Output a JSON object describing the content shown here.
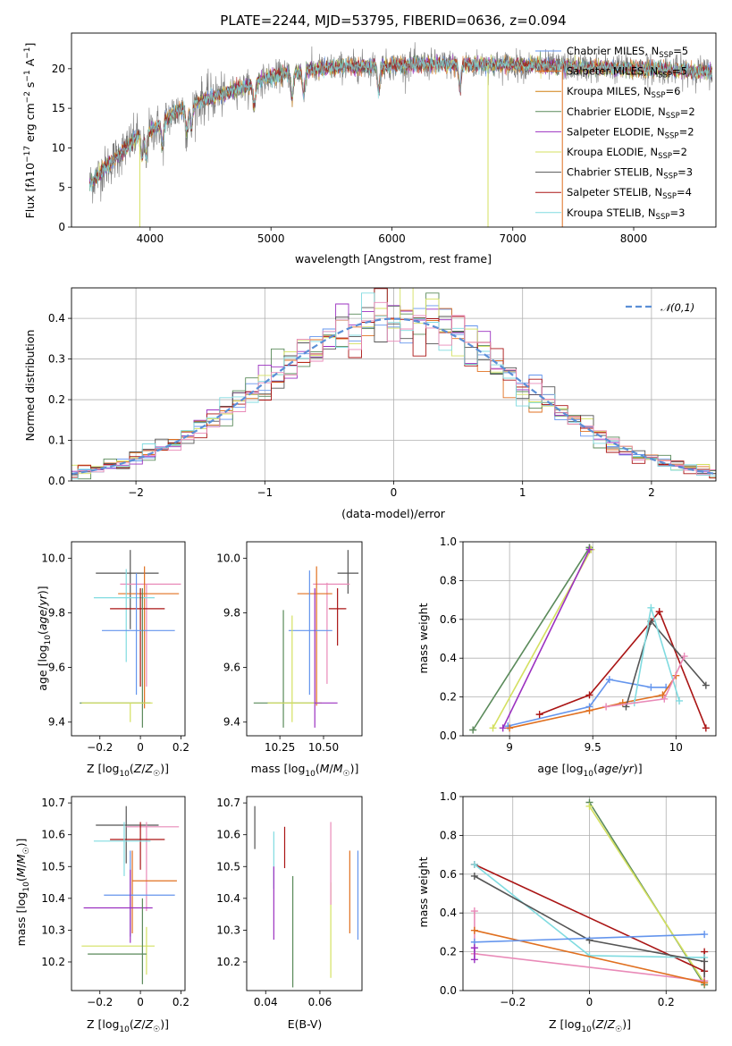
{
  "chart_data": [
    {
      "id": "spectrum",
      "type": "line",
      "title": "PLATE=2244, MJD=53795, FIBERID=0636, z=0.094",
      "xlabel": "wavelength [Angstrom, rest frame]",
      "ylabel": "Flux [f_λ10^-17 erg cm^-2 s^-1 A^-1]",
      "xlim": [
        3350,
        8680
      ],
      "ylim": [
        0,
        24.5
      ],
      "xticks": [
        4000,
        5000,
        6000,
        7000,
        8000
      ],
      "yticks": [
        0,
        5,
        10,
        15,
        20
      ],
      "continuum": {
        "x": [
          3500,
          3700,
          3900,
          4050,
          4200,
          4400,
          4600,
          4800,
          5000,
          5300,
          5600,
          6000,
          6400,
          6800,
          7200,
          7600,
          8000,
          8400,
          8650
        ],
        "y": [
          5.5,
          8.5,
          11.5,
          12.5,
          14.5,
          15.8,
          16.8,
          17.8,
          19.0,
          19.8,
          20.3,
          20.4,
          20.6,
          20.5,
          20.4,
          20.2,
          20.0,
          19.8,
          19.6
        ]
      },
      "data_range": [
        3500,
        8650
      ],
      "legend": [
        {
          "name": "Chabrier MILES, N_SSP=5",
          "color": "#6495ed"
        },
        {
          "name": "Salpeter MILES, N_SSP=5",
          "color": "#e07020"
        },
        {
          "name": "Kroupa MILES, N_SSP=6",
          "color": "#d08010"
        },
        {
          "name": "Chabrier ELODIE, N_SSP=2",
          "color": "#5a8a5a"
        },
        {
          "name": "Salpeter ELODIE, N_SSP=2",
          "color": "#9b30c0"
        },
        {
          "name": "Kroupa ELODIE, N_SSP=2",
          "color": "#d4e060"
        },
        {
          "name": "Chabrier STELIB, N_SSP=3",
          "color": "#555555"
        },
        {
          "name": "Salpeter STELIB, N_SSP=4",
          "color": "#aa1515"
        },
        {
          "name": "Kroupa STELIB, N_SSP=3",
          "color": "#80dbe0"
        }
      ],
      "legend_placement": "right"
    },
    {
      "id": "residuals",
      "type": "histogram",
      "xlabel": "(data-model)/error",
      "ylabel": "Normed distribution",
      "xlim": [
        -2.5,
        2.5
      ],
      "ylim": [
        0,
        0.475
      ],
      "xticks": [
        -2,
        -1,
        0,
        1,
        2
      ],
      "yticks": [
        0.0,
        0.1,
        0.2,
        0.3,
        0.4
      ],
      "bin_width": 0.1,
      "series_colors": [
        "#6495ed",
        "#e07020",
        "#5a8a5a",
        "#9b30c0",
        "#d4e060",
        "#555555",
        "#aa1515",
        "#80dbe0",
        "#e98ab8"
      ],
      "reference": {
        "name": "𝒩(0,1)",
        "color": "#5b8fd6",
        "style": "dashed"
      },
      "legend_placement": "upper right",
      "grid": true
    },
    {
      "id": "age-vs-Z",
      "type": "errorbar",
      "xlabel": "Z [log10(Z/Z☉)]",
      "ylabel": "age [log10(age/yr)]",
      "xlim": [
        -0.34,
        0.22
      ],
      "ylim": [
        9.35,
        10.06
      ],
      "xticks": [
        -0.2,
        0.0,
        0.2
      ],
      "yticks": [
        9.4,
        9.6,
        9.8,
        10.0
      ],
      "points": [
        {
          "x": -0.05,
          "xlo": -0.22,
          "xhi": 0.09,
          "y": 9.945,
          "ylo": 9.74,
          "yhi": 10.03,
          "color": "#555555"
        },
        {
          "x": 0.03,
          "xlo": -0.1,
          "xhi": 0.2,
          "y": 9.905,
          "ylo": 9.53,
          "yhi": 9.905,
          "color": "#e98ab8"
        },
        {
          "x": 0.02,
          "xlo": -0.11,
          "xhi": 0.19,
          "y": 9.87,
          "ylo": 9.45,
          "yhi": 9.97,
          "color": "#e07020"
        },
        {
          "x": -0.07,
          "xlo": -0.23,
          "xhi": 0.07,
          "y": 9.855,
          "ylo": 9.62,
          "yhi": 9.96,
          "color": "#80dbe0"
        },
        {
          "x": 0.0,
          "xlo": -0.15,
          "xhi": 0.12,
          "y": 9.815,
          "ylo": 9.53,
          "yhi": 9.89,
          "color": "#aa1515"
        },
        {
          "x": -0.02,
          "xlo": -0.19,
          "xhi": 0.17,
          "y": 9.735,
          "ylo": 9.5,
          "yhi": 9.945,
          "color": "#6495ed"
        },
        {
          "x": 0.01,
          "xlo": -0.3,
          "xhi": 0.05,
          "y": 9.47,
          "ylo": 9.38,
          "yhi": 9.89,
          "color": "#5a8a5a"
        },
        {
          "x": -0.05,
          "xlo": -0.29,
          "xhi": 0.06,
          "y": 9.47,
          "ylo": 9.4,
          "yhi": 9.47,
          "color": "#d4e060"
        }
      ]
    },
    {
      "id": "age-vs-mass",
      "type": "errorbar",
      "xlabel": "mass [log10(M/M☉)]",
      "ylabel": "",
      "xlim": [
        10.06,
        10.72
      ],
      "ylim": [
        9.35,
        10.06
      ],
      "xticks": [
        10.25,
        10.5
      ],
      "xtick_labels": [
        "10.25",
        "10.50"
      ],
      "yticks": [
        9.4,
        9.6,
        9.8,
        10.0
      ],
      "points": [
        {
          "x": 10.64,
          "xlo": 10.58,
          "xhi": 10.7,
          "y": 9.945,
          "ylo": 9.87,
          "yhi": 10.03,
          "color": "#555555"
        },
        {
          "x": 10.52,
          "xlo": 10.44,
          "xhi": 10.65,
          "y": 9.905,
          "ylo": 9.54,
          "yhi": 9.91,
          "color": "#e98ab8"
        },
        {
          "x": 10.46,
          "xlo": 10.35,
          "xhi": 10.55,
          "y": 9.87,
          "ylo": 9.46,
          "yhi": 9.97,
          "color": "#e07020"
        },
        {
          "x": 10.58,
          "xlo": 10.53,
          "xhi": 10.63,
          "y": 9.815,
          "ylo": 9.68,
          "yhi": 9.89,
          "color": "#aa1515"
        },
        {
          "x": 10.42,
          "xlo": 10.3,
          "xhi": 10.55,
          "y": 9.735,
          "ylo": 9.5,
          "yhi": 9.955,
          "color": "#6495ed"
        },
        {
          "x": 10.27,
          "xlo": 10.1,
          "xhi": 10.45,
          "y": 9.47,
          "ylo": 9.38,
          "yhi": 9.81,
          "color": "#5a8a5a"
        },
        {
          "x": 10.32,
          "xlo": 10.18,
          "xhi": 10.49,
          "y": 9.47,
          "ylo": 9.4,
          "yhi": 9.79,
          "color": "#d4e060"
        },
        {
          "x": 10.45,
          "xlo": 10.45,
          "xhi": 10.58,
          "y": 9.47,
          "ylo": 9.38,
          "yhi": 9.89,
          "color": "#9b30c0"
        }
      ]
    },
    {
      "id": "weight-vs-age",
      "type": "line",
      "xlabel": "age [log10(age/yr)]",
      "ylabel": "mass weight",
      "xlim": [
        8.72,
        10.24
      ],
      "ylim": [
        0,
        1
      ],
      "xticks": [
        9.0,
        9.5,
        10.0
      ],
      "yticks": [
        0.0,
        0.2,
        0.4,
        0.6,
        0.8,
        1.0
      ],
      "grid": true,
      "series": [
        {
          "color": "#5a8a5a",
          "x": [
            8.78,
            9.48,
            9.48
          ],
          "y": [
            0.03,
            0.97,
            0.97
          ]
        },
        {
          "color": "#d4e060",
          "x": [
            8.9,
            9.49,
            9.49
          ],
          "y": [
            0.04,
            0.96,
            0.96
          ]
        },
        {
          "color": "#9b30c0",
          "x": [
            8.96,
            9.48
          ],
          "y": [
            0.04,
            0.96
          ]
        },
        {
          "color": "#6495ed",
          "x": [
            8.99,
            9.48,
            9.6,
            9.85,
            9.94
          ],
          "y": [
            0.05,
            0.15,
            0.29,
            0.25,
            0.25
          ]
        },
        {
          "color": "#e07020",
          "x": [
            9.0,
            9.48,
            9.68,
            9.92,
            10.0
          ],
          "y": [
            0.04,
            0.13,
            0.17,
            0.21,
            0.31
          ]
        },
        {
          "color": "#aa1515",
          "x": [
            9.18,
            9.48,
            9.9,
            10.18
          ],
          "y": [
            0.11,
            0.21,
            0.64,
            0.04
          ]
        },
        {
          "color": "#555555",
          "x": [
            9.7,
            9.85,
            10.18
          ],
          "y": [
            0.15,
            0.59,
            0.26
          ]
        },
        {
          "color": "#80dbe0",
          "x": [
            9.75,
            9.85,
            10.02
          ],
          "y": [
            0.17,
            0.66,
            0.18
          ]
        },
        {
          "color": "#e98ab8",
          "x": [
            9.58,
            9.93,
            10.05
          ],
          "y": [
            0.15,
            0.19,
            0.41
          ]
        }
      ]
    },
    {
      "id": "mass-vs-Z",
      "type": "errorbar",
      "xlabel": "Z [log10(Z/Z☉)]",
      "ylabel": "mass [log10(M/M☉)]",
      "xlim": [
        -0.34,
        0.22
      ],
      "ylim": [
        10.11,
        10.72
      ],
      "xticks": [
        -0.2,
        0.0,
        0.2
      ],
      "yticks": [
        10.2,
        10.3,
        10.4,
        10.5,
        10.6,
        10.7
      ],
      "points": [
        {
          "x": -0.07,
          "xlo": -0.22,
          "xhi": 0.09,
          "y": 10.63,
          "ylo": 10.51,
          "yhi": 10.69,
          "color": "#555555"
        },
        {
          "x": 0.03,
          "xlo": -0.07,
          "xhi": 0.19,
          "y": 10.625,
          "ylo": 10.36,
          "yhi": 10.64,
          "color": "#e98ab8"
        },
        {
          "x": 0.0,
          "xlo": -0.15,
          "xhi": 0.12,
          "y": 10.585,
          "ylo": 10.49,
          "yhi": 10.64,
          "color": "#aa1515"
        },
        {
          "x": -0.08,
          "xlo": -0.23,
          "xhi": 0.05,
          "y": 10.58,
          "ylo": 10.47,
          "yhi": 10.64,
          "color": "#80dbe0"
        },
        {
          "x": -0.04,
          "xlo": -0.04,
          "xhi": 0.18,
          "y": 10.455,
          "ylo": 10.29,
          "yhi": 10.55,
          "color": "#e07020"
        },
        {
          "x": -0.05,
          "xlo": -0.18,
          "xhi": 0.17,
          "y": 10.41,
          "ylo": 10.28,
          "yhi": 10.55,
          "color": "#6495ed"
        },
        {
          "x": -0.05,
          "xlo": -0.28,
          "xhi": 0.06,
          "y": 10.37,
          "ylo": 10.26,
          "yhi": 10.49,
          "color": "#9b30c0"
        },
        {
          "x": 0.03,
          "xlo": -0.29,
          "xhi": 0.07,
          "y": 10.25,
          "ylo": 10.16,
          "yhi": 10.31,
          "color": "#d4e060"
        },
        {
          "x": 0.01,
          "xlo": -0.26,
          "xhi": 0.03,
          "y": 10.225,
          "ylo": 10.13,
          "yhi": 10.4,
          "color": "#5a8a5a"
        }
      ]
    },
    {
      "id": "mass-vs-ebv",
      "type": "errorbar",
      "xlabel": "E(B-V)",
      "ylabel": "",
      "xlim": [
        0.033,
        0.0755
      ],
      "ylim": [
        10.11,
        10.72
      ],
      "xticks": [
        0.04,
        0.06
      ],
      "xtick_labels": [
        "0.04",
        "0.06"
      ],
      "yticks": [
        10.2,
        10.3,
        10.4,
        10.5,
        10.6,
        10.7
      ],
      "points": [
        {
          "x": 0.036,
          "ylo": 10.555,
          "yhi": 10.69,
          "color": "#555555"
        },
        {
          "x": 0.043,
          "ylo": 10.43,
          "yhi": 10.61,
          "color": "#80dbe0"
        },
        {
          "x": 0.043,
          "ylo": 10.27,
          "yhi": 10.5,
          "color": "#9b30c0"
        },
        {
          "x": 0.047,
          "ylo": 10.495,
          "yhi": 10.625,
          "color": "#aa1515"
        },
        {
          "x": 0.05,
          "ylo": 10.12,
          "yhi": 10.47,
          "color": "#5a8a5a"
        },
        {
          "x": 0.064,
          "ylo": 10.15,
          "yhi": 10.45,
          "color": "#d4e060"
        },
        {
          "x": 0.064,
          "ylo": 10.38,
          "yhi": 10.64,
          "color": "#e98ab8"
        },
        {
          "x": 0.071,
          "ylo": 10.29,
          "yhi": 10.55,
          "color": "#e07020"
        },
        {
          "x": 0.074,
          "ylo": 10.27,
          "yhi": 10.55,
          "color": "#6495ed"
        }
      ]
    },
    {
      "id": "weight-vs-Z",
      "type": "line",
      "xlabel": "Z [log10(Z/Z☉)]",
      "ylabel": "mass weight",
      "xlim": [
        -0.33,
        0.33
      ],
      "ylim": [
        0,
        1
      ],
      "xticks": [
        -0.2,
        0.0,
        0.2
      ],
      "yticks": [
        0.0,
        0.2,
        0.4,
        0.6,
        0.8,
        1.0
      ],
      "grid": true,
      "series": [
        {
          "color": "#5a8a5a",
          "x": [
            0.0,
            0.3
          ],
          "y": [
            0.97,
            0.03
          ]
        },
        {
          "color": "#d4e060",
          "x": [
            0.0,
            0.3
          ],
          "y": [
            0.95,
            0.04
          ]
        },
        {
          "color": "#aa1515",
          "x": [
            -0.3,
            0.3,
            0.3
          ],
          "y": [
            0.65,
            0.1,
            0.2
          ]
        },
        {
          "color": "#80dbe0",
          "x": [
            -0.3,
            0.0,
            0.3
          ],
          "y": [
            0.65,
            0.18,
            0.17
          ]
        },
        {
          "color": "#555555",
          "x": [
            -0.3,
            0.0,
            0.3,
            0.3
          ],
          "y": [
            0.59,
            0.26,
            0.15,
            0.05
          ]
        },
        {
          "color": "#e98ab8",
          "x": [
            -0.3,
            -0.3,
            0.3
          ],
          "y": [
            0.41,
            0.19,
            0.05
          ]
        },
        {
          "color": "#e07020",
          "x": [
            -0.3,
            0.3
          ],
          "y": [
            0.31,
            0.04
          ]
        },
        {
          "color": "#6495ed",
          "x": [
            -0.3,
            0.3
          ],
          "y": [
            0.25,
            0.29
          ]
        },
        {
          "color": "#9b30c0",
          "x": [
            -0.3,
            -0.3
          ],
          "y": [
            0.16,
            0.22
          ]
        }
      ]
    }
  ]
}
